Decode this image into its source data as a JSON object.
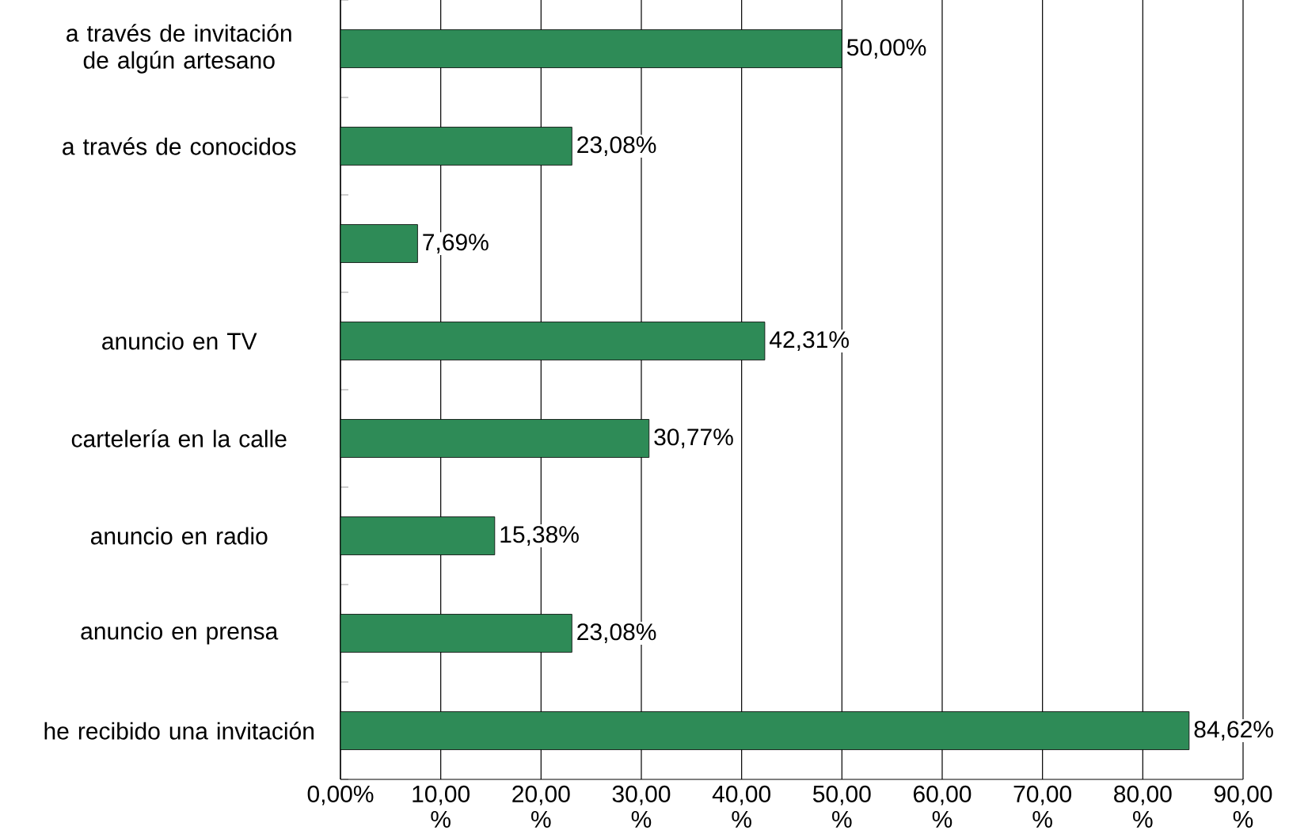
{
  "chart_data": {
    "type": "bar",
    "orientation": "horizontal",
    "categories": [
      "a través de invitación de algún artesano",
      "a través de conocidos",
      null,
      "anuncio en TV",
      "cartelería en la calle",
      "anuncio en radio",
      "anuncio en prensa",
      "he recibido una invitación"
    ],
    "values": [
      50.0,
      23.08,
      7.69,
      42.31,
      30.77,
      15.38,
      23.08,
      84.62
    ],
    "value_labels": [
      "50,00%",
      "23,08%",
      "7,69%",
      "42,31%",
      "30,77%",
      "15,38%",
      "23,08%",
      "84,62%"
    ],
    "color": "#2e8b57",
    "xlim": [
      0,
      90
    ],
    "xticks": [
      {
        "value": 0,
        "label": "0,00%"
      },
      {
        "value": 10,
        "label": "10,00 %"
      },
      {
        "value": 20,
        "label": "20,00 %"
      },
      {
        "value": 30,
        "label": "30,00 %"
      },
      {
        "value": 40,
        "label": "40,00 %"
      },
      {
        "value": 50,
        "label": "50,00 %"
      },
      {
        "value": 60,
        "label": "60,00 %"
      },
      {
        "value": 70,
        "label": "70,00 %"
      },
      {
        "value": 80,
        "label": "80,00 %"
      },
      {
        "value": 90,
        "label": "90,00 %"
      }
    ],
    "grid": "x"
  }
}
